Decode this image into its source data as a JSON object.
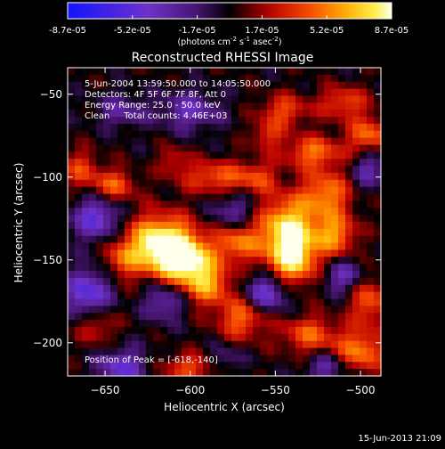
{
  "chart_data": {
    "type": "heatmap",
    "title": "Reconstructed RHESSI Image",
    "xlabel": "Heliocentric X (arcsec)",
    "ylabel": "Heliocentric Y (arcsec)",
    "xlim": [
      -672,
      -488
    ],
    "ylim": [
      -220,
      -34
    ],
    "xticks": [
      -650,
      -600,
      -550,
      -500
    ],
    "yticks": [
      -50,
      -100,
      -150,
      -200
    ],
    "colorbar": {
      "min": -8.7e-05,
      "max": 8.7e-05,
      "tick_labels": [
        "-8.7e-05",
        "-5.2e-05",
        "-1.7e-05",
        "1.7e-05",
        "5.2e-05",
        "8.7e-05"
      ],
      "units_prefix": "(photons cm",
      "units_exp1": "-2",
      "units_mid": " s",
      "units_exp2": "-1",
      "units_tail": " asec",
      "units_exp3": "-2",
      "units_end": ")"
    },
    "annotations": [
      "5-Jun-2004 13:59:50.000 to 14:05:50.000",
      "Detectors: 4F 5F 6F 7F 8F, Att 0",
      "Energy Range: 25.0 - 50.0 keV",
      "Clean     Total counts: 4.46E+03"
    ],
    "peak_label": "Position of Peak = [-618,-140]",
    "peak": [
      -618,
      -140
    ],
    "blobs": [
      {
        "x": -618,
        "y": -140,
        "a": 1.0,
        "sx": 14,
        "sy": 12
      },
      {
        "x": -603,
        "y": -150,
        "a": 0.85,
        "sx": 12,
        "sy": 10
      },
      {
        "x": -590,
        "y": -165,
        "a": 0.6,
        "sx": 10,
        "sy": 9
      },
      {
        "x": -572,
        "y": -140,
        "a": 0.55,
        "sx": 9,
        "sy": 8
      },
      {
        "x": -543,
        "y": -130,
        "a": 0.85,
        "sx": 12,
        "sy": 13
      },
      {
        "x": -540,
        "y": -150,
        "a": 0.8,
        "sx": 10,
        "sy": 11
      },
      {
        "x": -520,
        "y": -110,
        "a": 0.6,
        "sx": 10,
        "sy": 10
      },
      {
        "x": -515,
        "y": -135,
        "a": 0.6,
        "sx": 9,
        "sy": 9
      },
      {
        "x": -528,
        "y": -85,
        "a": 0.55,
        "sx": 12,
        "sy": 7
      },
      {
        "x": -495,
        "y": -75,
        "a": 0.55,
        "sx": 9,
        "sy": 8
      },
      {
        "x": -510,
        "y": -55,
        "a": 0.45,
        "sx": 10,
        "sy": 7
      },
      {
        "x": -545,
        "y": -60,
        "a": 0.45,
        "sx": 10,
        "sy": 7
      },
      {
        "x": -585,
        "y": -100,
        "a": 0.5,
        "sx": 14,
        "sy": 7
      },
      {
        "x": -560,
        "y": -100,
        "a": 0.35,
        "sx": 8,
        "sy": 7
      },
      {
        "x": -645,
        "y": -105,
        "a": 0.5,
        "sx": 9,
        "sy": 7
      },
      {
        "x": -665,
        "y": -95,
        "a": 0.4,
        "sx": 8,
        "sy": 8
      },
      {
        "x": -570,
        "y": -185,
        "a": 0.55,
        "sx": 10,
        "sy": 9
      },
      {
        "x": -530,
        "y": -195,
        "a": 0.5,
        "sx": 12,
        "sy": 8
      },
      {
        "x": -500,
        "y": -205,
        "a": 0.6,
        "sx": 10,
        "sy": 9
      },
      {
        "x": -495,
        "y": -175,
        "a": 0.5,
        "sx": 8,
        "sy": 10
      },
      {
        "x": -600,
        "y": -215,
        "a": 0.45,
        "sx": 12,
        "sy": 6
      },
      {
        "x": -655,
        "y": -190,
        "a": 0.35,
        "sx": 8,
        "sy": 8
      },
      {
        "x": -640,
        "y": -150,
        "a": 0.4,
        "sx": 7,
        "sy": 8
      },
      {
        "x": -555,
        "y": -75,
        "a": 0.35,
        "sx": 7,
        "sy": 6
      },
      {
        "x": -610,
        "y": -90,
        "a": 0.3,
        "sx": 6,
        "sy": 6
      },
      {
        "x": -655,
        "y": -125,
        "a": -0.6,
        "sx": 10,
        "sy": 9
      },
      {
        "x": -660,
        "y": -170,
        "a": -0.65,
        "sx": 9,
        "sy": 10
      },
      {
        "x": -640,
        "y": -215,
        "a": -0.55,
        "sx": 10,
        "sy": 8
      },
      {
        "x": -615,
        "y": -175,
        "a": -0.45,
        "sx": 8,
        "sy": 8
      },
      {
        "x": -575,
        "y": -120,
        "a": -0.35,
        "sx": 9,
        "sy": 7
      },
      {
        "x": -555,
        "y": -170,
        "a": -0.6,
        "sx": 9,
        "sy": 8
      },
      {
        "x": -510,
        "y": -160,
        "a": -0.45,
        "sx": 8,
        "sy": 7
      },
      {
        "x": -495,
        "y": -95,
        "a": -0.4,
        "sx": 7,
        "sy": 8
      },
      {
        "x": -600,
        "y": -60,
        "a": -0.45,
        "sx": 12,
        "sy": 8
      },
      {
        "x": -640,
        "y": -60,
        "a": -0.35,
        "sx": 10,
        "sy": 7
      },
      {
        "x": -520,
        "y": -215,
        "a": -0.4,
        "sx": 8,
        "sy": 6
      },
      {
        "x": -580,
        "y": -210,
        "a": -0.3,
        "sx": 7,
        "sy": 6
      }
    ]
  },
  "footer": {
    "timestamp": "15-Jun-2013 21:09"
  }
}
